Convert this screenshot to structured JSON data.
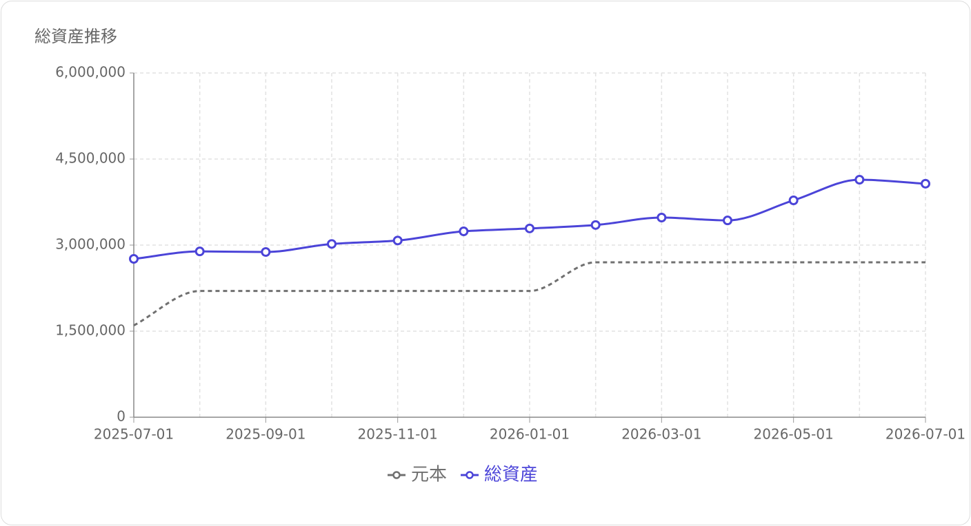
{
  "chart_data": {
    "type": "line",
    "title": "総資産推移",
    "categories": [
      "2025-07-01",
      null,
      "2025-09-01",
      null,
      "2025-11-01",
      null,
      "2026-01-01",
      null,
      "2026-03-01",
      null,
      "2026-05-01",
      null,
      "2026-07-01"
    ],
    "series": [
      {
        "name": "元本",
        "color": "#707070",
        "dashed": true,
        "markers": false,
        "values": [
          1600000,
          2200000,
          2200000,
          2200000,
          2200000,
          2200000,
          2200000,
          2700000,
          2700000,
          2700000,
          2700000,
          2700000,
          2700000
        ]
      },
      {
        "name": "総資産",
        "color": "#4b44d8",
        "dashed": false,
        "markers": true,
        "values": [
          2760000,
          2890000,
          2880000,
          3020000,
          3080000,
          3240000,
          3290000,
          3350000,
          3480000,
          3430000,
          3780000,
          4140000,
          4070000
        ]
      }
    ],
    "ylim": [
      0,
      6000000
    ],
    "yticks": [
      0,
      {
        "value": 1500000,
        "label": "1,500,000"
      },
      {
        "value": 3000000,
        "label": "3,000,000"
      },
      {
        "value": 4500000,
        "label": "4,500,000"
      },
      {
        "value": 6000000,
        "label": "6,000,000"
      }
    ],
    "grid": true,
    "legend": "bottom"
  }
}
